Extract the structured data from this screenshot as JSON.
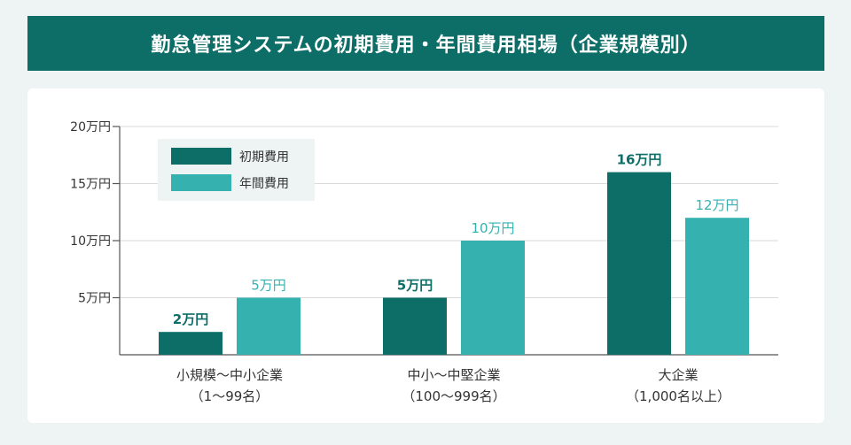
{
  "title": "勤怠管理システムの初期費用・年間費用相場（企業規模別）",
  "chart_data": {
    "type": "bar",
    "categories": [
      [
        "小規模〜中小企業",
        "（1〜99名）"
      ],
      [
        "中小〜中堅企業",
        "（100〜999名）"
      ],
      [
        "大企業",
        "（1,000名以上）"
      ]
    ],
    "series": [
      {
        "name": "初期費用",
        "values": [
          2,
          5,
          16
        ],
        "labels": [
          "2万円",
          "5万円",
          "16万円"
        ]
      },
      {
        "name": "年間費用",
        "values": [
          5,
          10,
          12
        ],
        "labels": [
          "5万円",
          "10万円",
          "12万円"
        ]
      }
    ],
    "yticks": [
      {
        "value": 5,
        "label": "5万円"
      },
      {
        "value": 10,
        "label": "10万円"
      },
      {
        "value": 15,
        "label": "15万円"
      },
      {
        "value": 20,
        "label": "20万円"
      }
    ],
    "ylim": [
      0,
      20
    ],
    "grid": true,
    "legend": "top-left",
    "colors": {
      "初期費用": "#0d6e68",
      "年間費用": "#35b1b0"
    }
  }
}
